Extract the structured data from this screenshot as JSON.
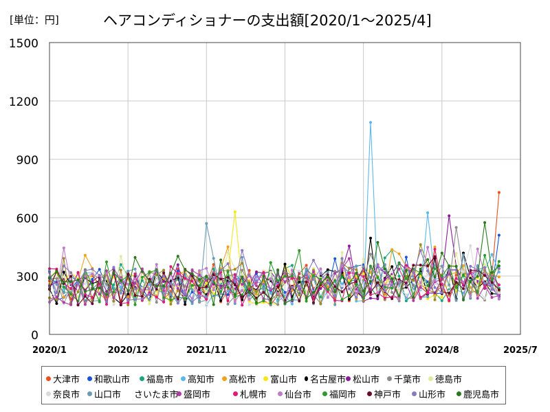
{
  "chart_data": {
    "type": "line",
    "title": "ヘアコンディショナーの支出額[2020/1～2025/4]",
    "unit_label": "[単位：円]",
    "xlabel": "",
    "ylabel": "",
    "ylim": [
      0,
      1500
    ],
    "y_ticks": [
      "0",
      "300",
      "600",
      "900",
      "1200",
      "1500"
    ],
    "x_ticks": [
      "2020/1",
      "2020/12",
      "2021/11",
      "2022/10",
      "2023/9",
      "2024/8",
      "2025/7"
    ],
    "x_range": [
      "2020/1",
      "2025/7"
    ],
    "grid": true,
    "legend_position": "bottom",
    "highlights": [
      {
        "series": "高知市",
        "x": "2023/10",
        "y": 1090
      },
      {
        "series": "大津市",
        "x": "2025/4",
        "y": 730
      },
      {
        "series": "富山市",
        "x": "2022/3",
        "y": 630
      },
      {
        "series": "高知市",
        "x": "2024/6",
        "y": 625
      },
      {
        "series": "松山市",
        "x": "2024/9",
        "y": 610
      },
      {
        "series": "鹿児島市",
        "x": "2025/2",
        "y": 575
      },
      {
        "series": "山口市",
        "x": "2021/11",
        "y": 570
      },
      {
        "series": "名古屋市",
        "x": "2023/10",
        "y": 495
      },
      {
        "series": "和歌山市",
        "x": "2025/4",
        "y": 510
      },
      {
        "series": "千葉市",
        "x": "2024/10",
        "y": 550
      }
    ],
    "series": [
      {
        "name": "大津市",
        "color": "#e8501e"
      },
      {
        "name": "和歌山市",
        "color": "#1a55d6"
      },
      {
        "name": "福島市",
        "color": "#1aa67a"
      },
      {
        "name": "高知市",
        "color": "#5bb8ea"
      },
      {
        "name": "高松市",
        "color": "#f0a21e"
      },
      {
        "name": "富山市",
        "color": "#f5e81a"
      },
      {
        "name": "名古屋市",
        "color": "#000000"
      },
      {
        "name": "松山市",
        "color": "#8a1a9a"
      },
      {
        "name": "千葉市",
        "color": "#8c8c8c"
      },
      {
        "name": "徳島市",
        "color": "#e0eaa0"
      },
      {
        "name": "奈良市",
        "color": "#dadada"
      },
      {
        "name": "山口市",
        "color": "#6a9ab8"
      },
      {
        "name": "さいたま市",
        "color": "#a08a2a"
      },
      {
        "name": "盛岡市",
        "color": "#b03aa6"
      },
      {
        "name": "札幌市",
        "color": "#e0187a"
      },
      {
        "name": "仙台市",
        "color": "#c07ac8"
      },
      {
        "name": "福岡市",
        "color": "#2a9a2a"
      },
      {
        "name": "神戸市",
        "color": "#6a0a2a"
      },
      {
        "name": "山形市",
        "color": "#8a78c0"
      },
      {
        "name": "鹿児島市",
        "color": "#2a7a1a"
      }
    ]
  }
}
